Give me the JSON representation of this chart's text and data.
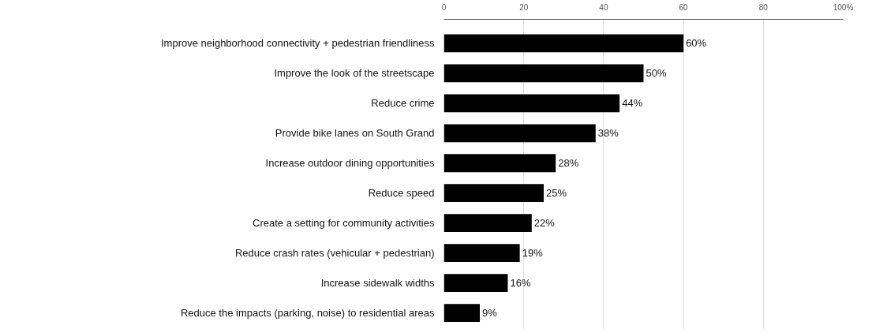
{
  "chart_data": {
    "type": "bar",
    "orientation": "horizontal",
    "categories": [
      "Improve neighborhood connectivity + pedestrian friendliness",
      "Improve the look of the streetscape",
      "Reduce crime",
      "Provide bike lanes on South Grand",
      "Increase outdoor dining opportunities",
      "Reduce speed",
      "Create a setting for community activities",
      "Reduce crash rates (vehicular + pedestrian)",
      "Increase sidewalk widths",
      "Reduce the impacts (parking, noise) to residential areas"
    ],
    "values": [
      60,
      50,
      44,
      38,
      28,
      25,
      22,
      19,
      16,
      9
    ],
    "color": "#000000",
    "value_labels": [
      "60%",
      "50%",
      "44%",
      "38%",
      "28%",
      "25%",
      "22%",
      "19%",
      "16%",
      "9%"
    ],
    "xlim": [
      0,
      100
    ],
    "xticks": [
      0,
      20,
      40,
      60,
      80,
      {
        "value": 100,
        "label": "100%"
      }
    ],
    "grid": "x"
  }
}
